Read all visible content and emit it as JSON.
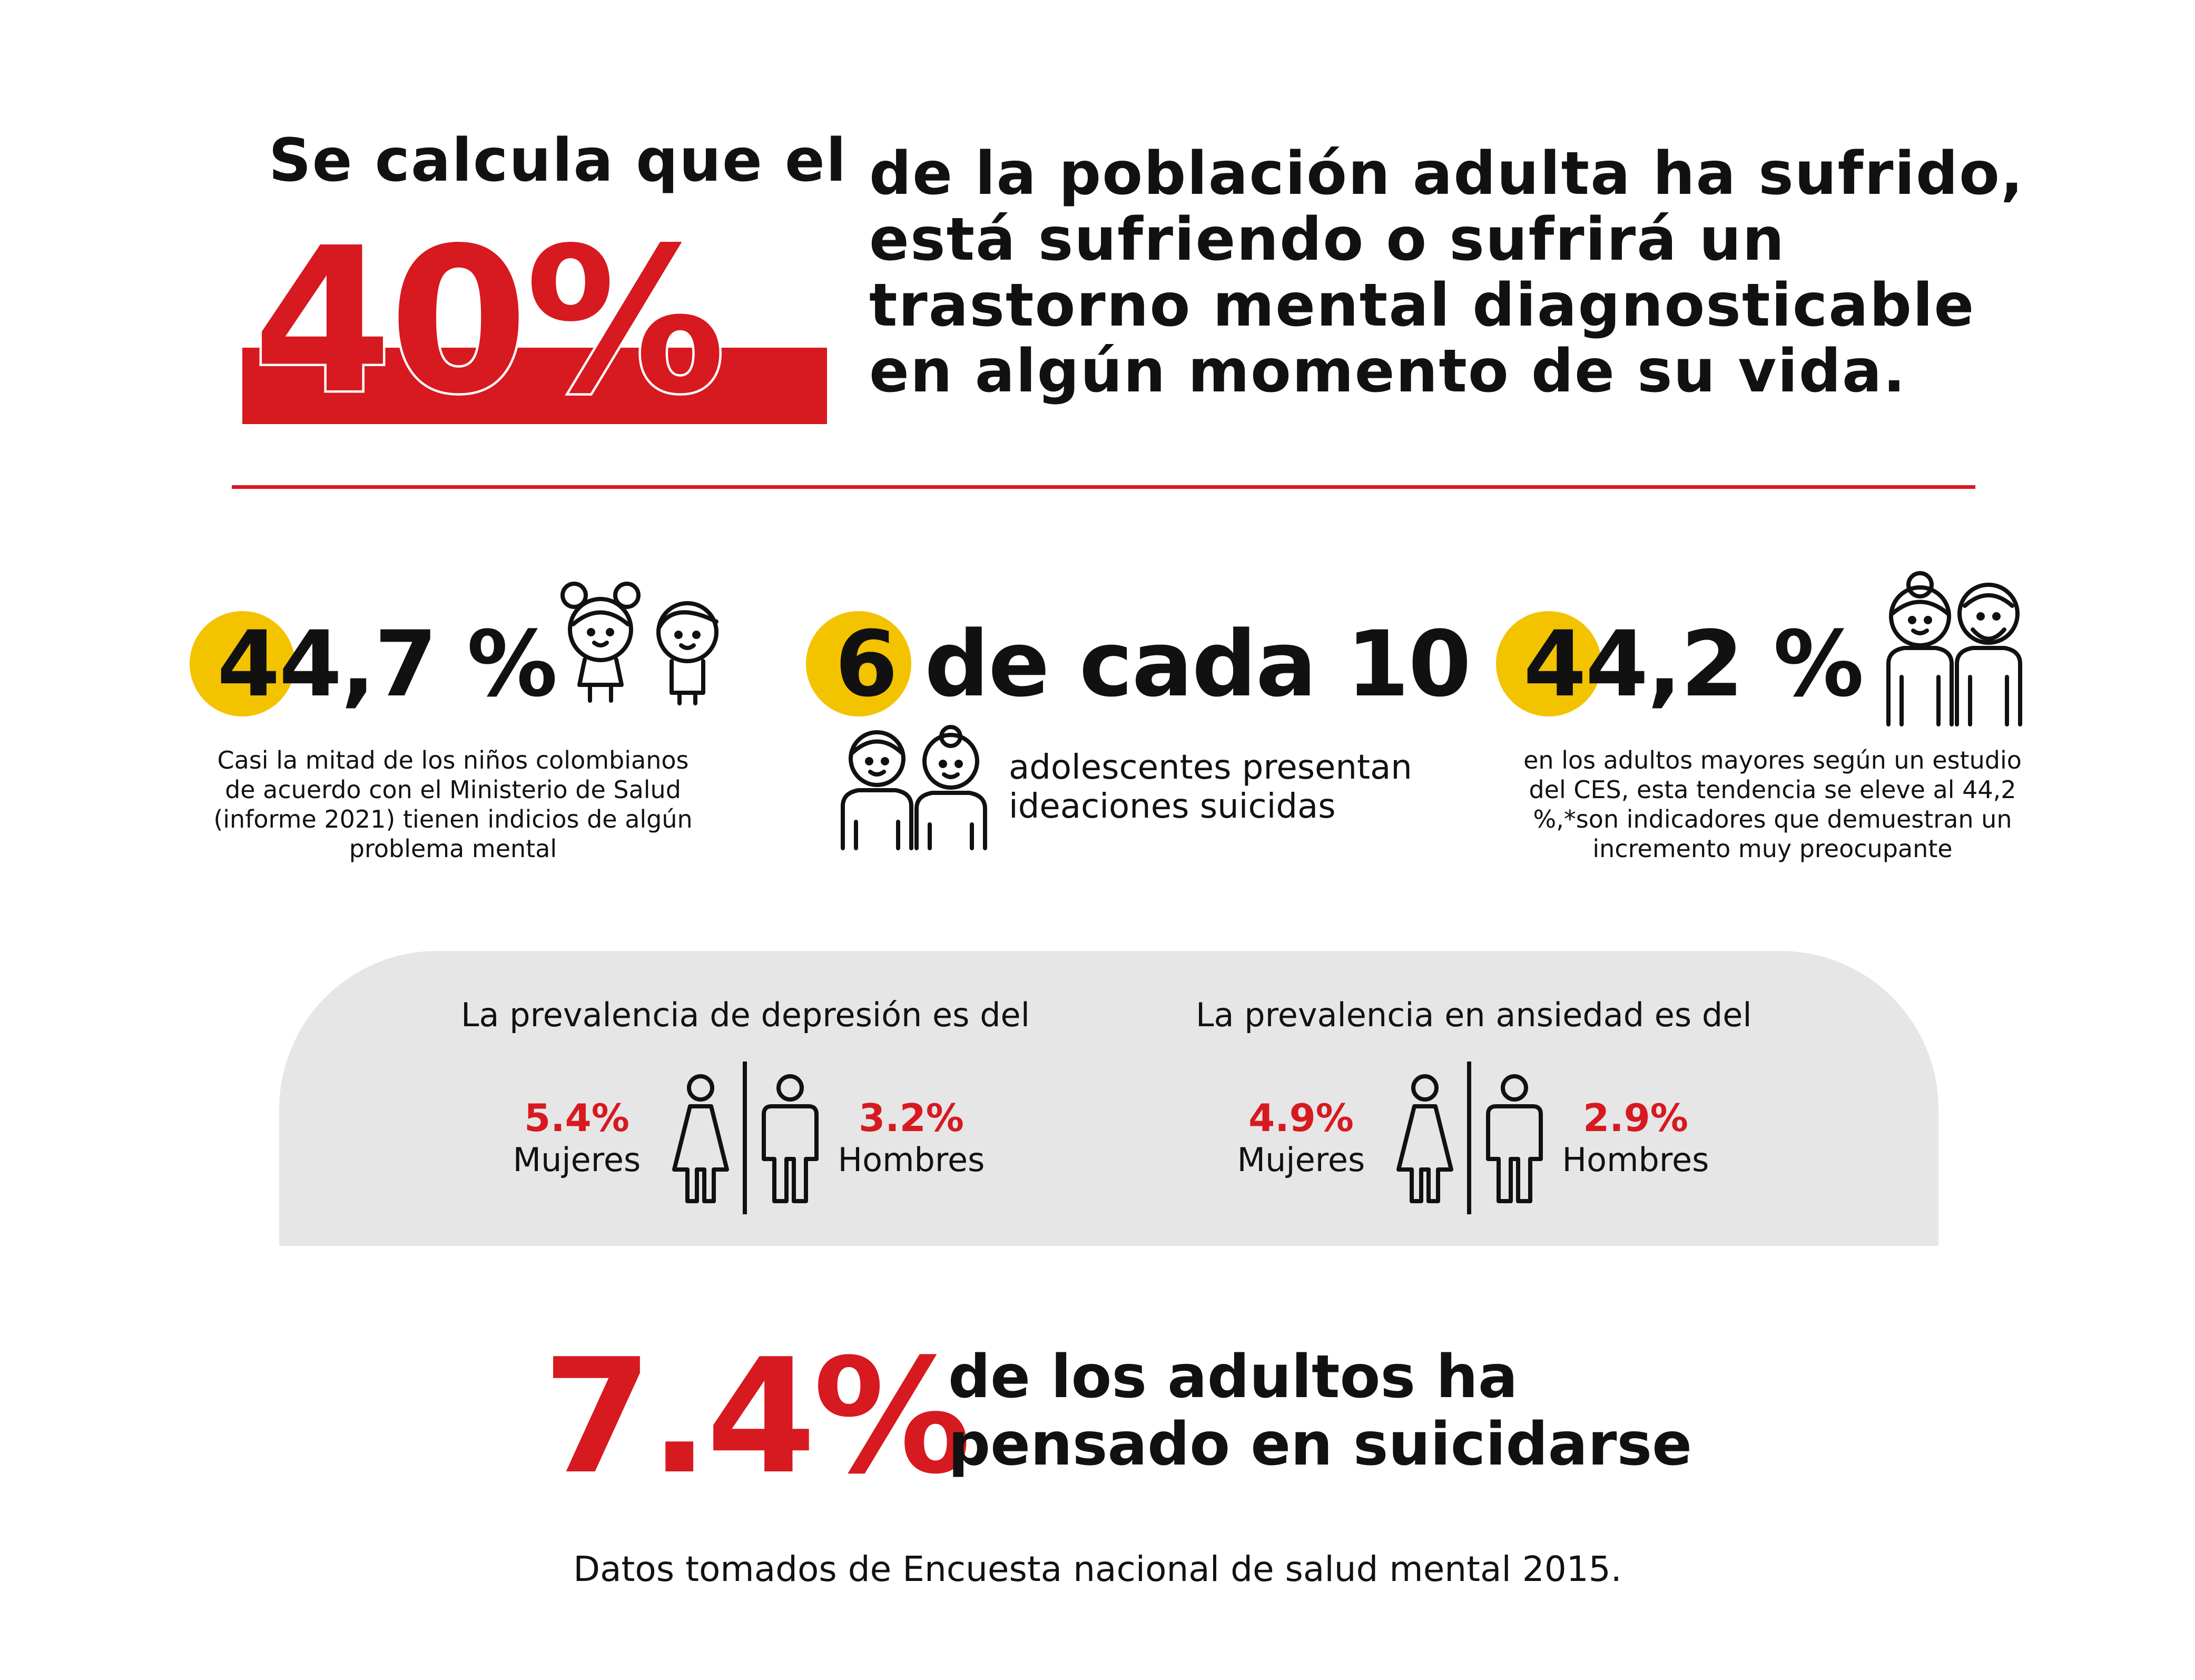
{
  "header": {
    "intro": "Se calcula que el",
    "big_percent": "40%",
    "headline_lines": [
      "de la población adulta ha sufrido,",
      "está sufriendo o sufrirá un",
      "trastorno mental diagnosticable",
      "en algún momento de su vida."
    ]
  },
  "stats": [
    {
      "value": "44,7 %",
      "icon": "children-icon",
      "description_lines": [
        "Casi la mitad de los niños colombianos",
        "de acuerdo con el Ministerio de Salud",
        "(informe 2021) tienen indicios de algún",
        "problema mental"
      ]
    },
    {
      "value_number": "6",
      "value_rest": "de cada 10",
      "icon": "teenagers-icon",
      "description_lines": [
        "adolescentes presentan",
        "ideaciones suicidas"
      ]
    },
    {
      "value": "44,2 %",
      "icon": "elderly-couple-icon",
      "description_lines": [
        "en los adultos mayores según un estudio",
        "del CES, esta tendencia se eleve al 44,2",
        "%,*son indicadores que demuestran un",
        "incremento muy preocupante"
      ]
    }
  ],
  "prevalence": {
    "depression": {
      "title": "La prevalencia de depresión es del",
      "women_pct": "5.4%",
      "women_label": "Mujeres",
      "men_pct": "3.2%",
      "men_label": "Hombres"
    },
    "anxiety": {
      "title": "La prevalencia en ansiedad es del",
      "women_pct": "4.9%",
      "women_label": "Mujeres",
      "men_pct": "2.9%",
      "men_label": "Hombres"
    }
  },
  "suicide": {
    "value": "7.4%",
    "text_lines": [
      "de los adultos ha",
      "pensado en suicidarse"
    ]
  },
  "source": "Datos tomados de Encuesta nacional de salud mental 2015.",
  "colors": {
    "accent_red": "#d71920",
    "accent_yellow": "#f3c300",
    "panel_grey": "#e6e6e6"
  }
}
